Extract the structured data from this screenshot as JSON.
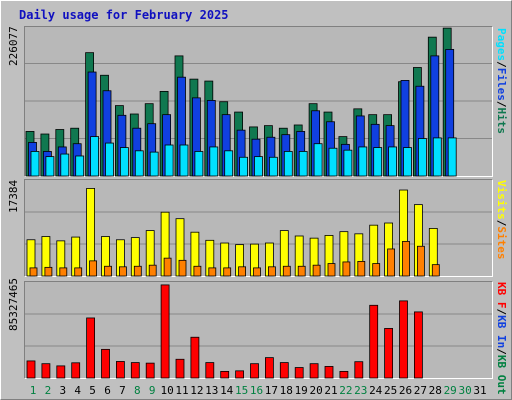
{
  "title": "Daily usage for February 2025",
  "chart_data": [
    {
      "type": "bar",
      "panel": "top",
      "ymax_label": "226077",
      "ymax": 226077,
      "legend": [
        "Pages",
        "/",
        "Files",
        "/",
        "Hits"
      ],
      "categories": [
        "1",
        "2",
        "3",
        "4",
        "5",
        "6",
        "7",
        "8",
        "9",
        "10",
        "11",
        "12",
        "13",
        "14",
        "15",
        "16",
        "17",
        "18",
        "19",
        "20",
        "21",
        "22",
        "23",
        "24",
        "25",
        "26",
        "27",
        "28",
        "29",
        "30",
        "31"
      ],
      "series": [
        {
          "name": "Hits",
          "color": "#107850",
          "values": [
            69000,
            65000,
            72000,
            74000,
            191000,
            156000,
            109000,
            96000,
            112000,
            131000,
            186000,
            150000,
            147000,
            115000,
            99000,
            76000,
            78000,
            74000,
            79000,
            112000,
            99000,
            61000,
            104000,
            95000,
            95000,
            146000,
            168000,
            215000,
            229000,
            0,
            0
          ]
        },
        {
          "name": "Files",
          "color": "#1040e0",
          "values": [
            52000,
            38000,
            45000,
            50000,
            161000,
            132000,
            94000,
            74000,
            81000,
            95000,
            153000,
            121000,
            117000,
            95000,
            71000,
            57000,
            60000,
            64000,
            69000,
            101000,
            84000,
            49000,
            93000,
            80000,
            78000,
            148000,
            139000,
            186000,
            196000,
            0,
            0
          ]
        },
        {
          "name": "Pages",
          "color": "#00e0ff",
          "values": [
            38000,
            30000,
            34000,
            31000,
            61000,
            51000,
            44000,
            39000,
            37000,
            48000,
            48000,
            38000,
            45000,
            39000,
            29000,
            30000,
            29000,
            38000,
            38000,
            50000,
            43000,
            40000,
            45000,
            44000,
            45000,
            44000,
            58000,
            59000,
            59000,
            0,
            0
          ]
        }
      ]
    },
    {
      "type": "bar",
      "panel": "middle",
      "ymax_label": "17384",
      "ymax": 17384,
      "legend": [
        "Visits",
        "/",
        "Sites"
      ],
      "categories": [
        "1",
        "2",
        "3",
        "4",
        "5",
        "6",
        "7",
        "8",
        "9",
        "10",
        "11",
        "12",
        "13",
        "14",
        "15",
        "16",
        "17",
        "18",
        "19",
        "20",
        "21",
        "22",
        "23",
        "24",
        "25",
        "26",
        "27",
        "28",
        "29",
        "30",
        "31"
      ],
      "series": [
        {
          "name": "Visits",
          "color": "#ffff00",
          "values": [
            6700,
            7300,
            6500,
            7200,
            16200,
            7300,
            6700,
            7100,
            8400,
            11800,
            10600,
            8100,
            6600,
            6100,
            5800,
            5900,
            6100,
            8400,
            7400,
            7000,
            7500,
            8200,
            7800,
            9400,
            9800,
            15900,
            13200,
            8800,
            0,
            0,
            0
          ]
        },
        {
          "name": "Sites",
          "color": "#ff8000",
          "values": [
            1500,
            1600,
            1500,
            1500,
            2800,
            1800,
            1700,
            1800,
            2000,
            3300,
            2900,
            1800,
            1500,
            1500,
            1700,
            1500,
            1700,
            1800,
            1800,
            2000,
            2300,
            2600,
            2700,
            2300,
            5000,
            6400,
            5500,
            2100,
            0,
            0,
            0
          ]
        }
      ]
    },
    {
      "type": "bar",
      "panel": "bottom",
      "ymax_label": "85327465",
      "ymax": 85327465,
      "legend": [
        "KB",
        "F",
        "/",
        "KB",
        "In",
        "/",
        "KB",
        "Out"
      ],
      "categories": [
        "1",
        "2",
        "3",
        "4",
        "5",
        "6",
        "7",
        "8",
        "9",
        "10",
        "11",
        "12",
        "13",
        "14",
        "15",
        "16",
        "17",
        "18",
        "19",
        "20",
        "21",
        "22",
        "23",
        "24",
        "25",
        "26",
        "27",
        "28",
        "29",
        "30",
        "31"
      ],
      "series": [
        {
          "name": "KB F",
          "color": "#ff0000",
          "values": [
            15500000,
            13000000,
            11000000,
            13800000,
            54500000,
            26000000,
            15000000,
            14000000,
            13500000,
            84500000,
            17000000,
            37000000,
            14000000,
            6000000,
            6500000,
            13000000,
            18500000,
            14000000,
            9500000,
            13000000,
            10500000,
            6000000,
            14800000,
            66000000,
            45000000,
            70000000,
            60000000,
            0,
            0,
            0,
            0
          ]
        }
      ]
    }
  ],
  "x_label_colors": {
    "weekday": "#000000",
    "weekend": "#008040"
  },
  "weekend_days": [
    "1",
    "2",
    "8",
    "9",
    "15",
    "16",
    "22",
    "23",
    "29",
    "30"
  ]
}
